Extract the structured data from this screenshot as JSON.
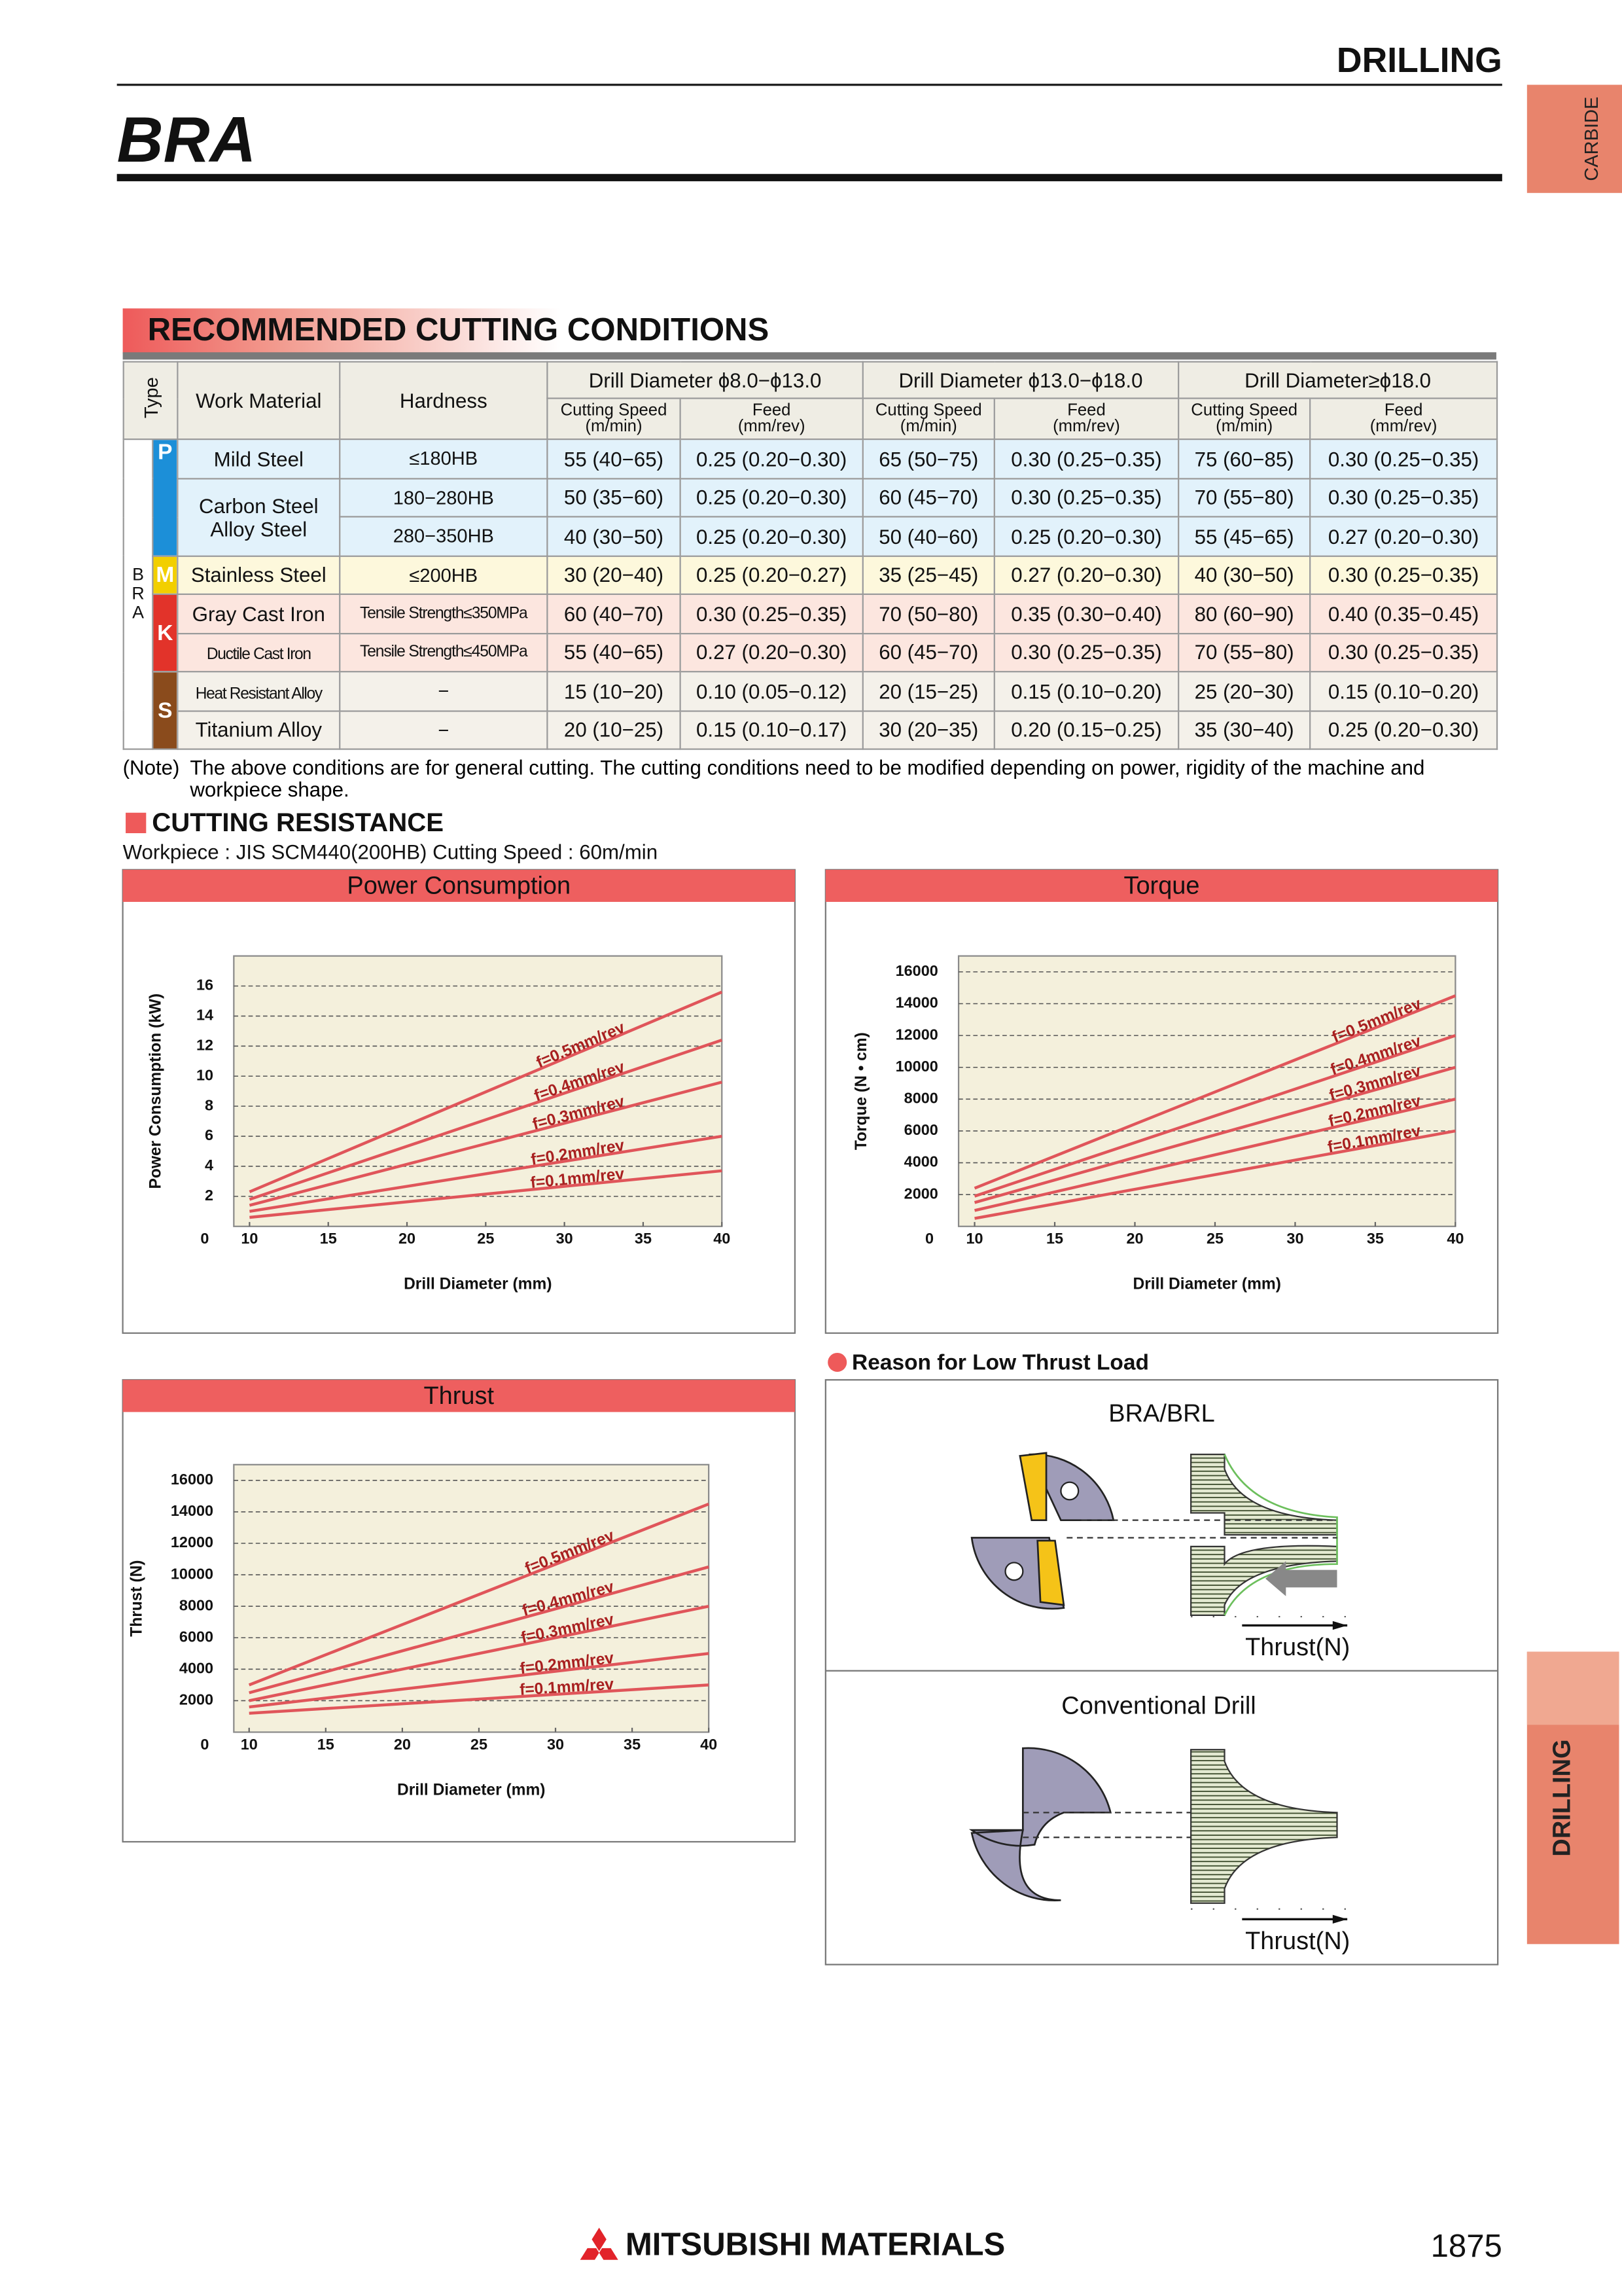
{
  "header": {
    "section": "DRILLING",
    "title": "BRA",
    "tab_top": "CARBIDE",
    "tab_side": "DRILLING"
  },
  "conditions": {
    "title": "RECOMMENDED CUTTING CONDITIONS",
    "headers": {
      "type": "Type",
      "work_material": "Work Material",
      "hardness": "Hardness",
      "diameters": [
        "Drill Diameter ϕ8.0−ϕ13.0",
        "Drill Diameter ϕ13.0−ϕ18.0",
        "Drill Diameter≥ϕ18.0"
      ],
      "speed": [
        "Cutting Speed",
        "(m/min)"
      ],
      "feed": [
        "Feed",
        "(mm/rev)"
      ]
    },
    "side_label": "BRA",
    "groups": [
      {
        "class": "P",
        "color": "#1c8fd8",
        "row_color": "#e2f2fb",
        "materials": [
          {
            "name": [
              "Mild Steel"
            ],
            "rows": [
              {
                "hardness": "≤180HB",
                "values": [
                  "55 (40−65)",
                  "0.25 (0.20−0.30)",
                  "65 (50−75)",
                  "0.30 (0.25−0.35)",
                  "75 (60−85)",
                  "0.30 (0.25−0.35)"
                ]
              }
            ]
          },
          {
            "name": [
              "Carbon Steel",
              "Alloy Steel"
            ],
            "rows": [
              {
                "hardness": "180−280HB",
                "values": [
                  "50 (35−60)",
                  "0.25 (0.20−0.30)",
                  "60 (45−70)",
                  "0.30 (0.25−0.35)",
                  "70 (55−80)",
                  "0.30 (0.25−0.35)"
                ]
              },
              {
                "hardness": "280−350HB",
                "values": [
                  "40 (30−50)",
                  "0.25 (0.20−0.30)",
                  "50 (40−60)",
                  "0.25 (0.20−0.30)",
                  "55 (45−65)",
                  "0.27 (0.20−0.30)"
                ]
              }
            ]
          }
        ]
      },
      {
        "class": "M",
        "color": "#f2cf00",
        "row_color": "#fdf8dc",
        "materials": [
          {
            "name": [
              "Stainless Steel"
            ],
            "rows": [
              {
                "hardness": "≤200HB",
                "values": [
                  "30 (20−40)",
                  "0.25 (0.20−0.27)",
                  "35 (25−45)",
                  "0.27 (0.20−0.30)",
                  "40 (30−50)",
                  "0.30 (0.25−0.35)"
                ]
              }
            ]
          }
        ]
      },
      {
        "class": "K",
        "color": "#e2332a",
        "row_color": "#fce6df",
        "materials": [
          {
            "name": [
              "Gray Cast Iron"
            ],
            "rows": [
              {
                "hardness": "Tensile Strength≤350MPa",
                "values": [
                  "60 (40−70)",
                  "0.30 (0.25−0.35)",
                  "70 (50−80)",
                  "0.35 (0.30−0.40)",
                  "80 (60−90)",
                  "0.40 (0.35−0.45)"
                ]
              }
            ]
          },
          {
            "name": [
              "Ductile Cast Iron"
            ],
            "rows": [
              {
                "hardness": "Tensile Strength≤450MPa",
                "values": [
                  "55 (40−65)",
                  "0.27 (0.20−0.30)",
                  "60 (45−70)",
                  "0.30 (0.25−0.35)",
                  "70 (55−80)",
                  "0.30 (0.25−0.35)"
                ]
              }
            ]
          }
        ]
      },
      {
        "class": "S",
        "color": "#8a4b1c",
        "row_color": "#f4f1ea",
        "materials": [
          {
            "name": [
              "Heat Resistant Alloy"
            ],
            "rows": [
              {
                "hardness": "−",
                "values": [
                  "15 (10−20)",
                  "0.10 (0.05−0.12)",
                  "20 (15−25)",
                  "0.15 (0.10−0.20)",
                  "25 (20−30)",
                  "0.15 (0.10−0.20)"
                ]
              }
            ]
          },
          {
            "name": [
              "Titanium Alloy"
            ],
            "rows": [
              {
                "hardness": "−",
                "values": [
                  "20 (10−25)",
                  "0.15 (0.10−0.17)",
                  "30 (20−35)",
                  "0.20 (0.15−0.25)",
                  "35 (30−40)",
                  "0.25 (0.20−0.30)"
                ]
              }
            ]
          }
        ]
      }
    ],
    "note_label": "(Note)",
    "note": "The above conditions are for general cutting. The cutting conditions need to be modified depending on power, rigidity of the machine and workpiece shape."
  },
  "resistance": {
    "title": "CUTTING RESISTANCE",
    "workpiece": "Workpiece : JIS SCM440(200HB)  Cutting Speed : 60m/min"
  },
  "chart_data": [
    {
      "type": "line",
      "title": "Power Consumption",
      "xlabel": "Drill Diameter (mm)",
      "ylabel": "Power Consumption (kW)",
      "x": [
        10,
        40
      ],
      "xlim": [
        9,
        40
      ],
      "xticks": [
        10,
        15,
        20,
        25,
        30,
        35,
        40
      ],
      "ylim": [
        0,
        18
      ],
      "yticks": [
        0,
        2,
        4,
        6,
        8,
        10,
        12,
        14,
        16
      ],
      "grid": true,
      "series": [
        {
          "name": "f=0.5mm/rev",
          "color": "#e0555a",
          "values": [
            2.3,
            15.6
          ]
        },
        {
          "name": "f=0.4mm/rev",
          "color": "#e0555a",
          "values": [
            1.8,
            12.4
          ]
        },
        {
          "name": "f=0.3mm/rev",
          "color": "#e0555a",
          "values": [
            1.4,
            9.6
          ]
        },
        {
          "name": "f=0.2mm/rev",
          "color": "#e0555a",
          "values": [
            1.0,
            6.0
          ]
        },
        {
          "name": "f=0.1mm/rev",
          "color": "#e0555a",
          "values": [
            0.6,
            3.7
          ]
        }
      ]
    },
    {
      "type": "line",
      "title": "Torque",
      "xlabel": "Drill Diameter (mm)",
      "ylabel": "Torque (N • cm)",
      "x": [
        10,
        40
      ],
      "xlim": [
        9,
        40
      ],
      "xticks": [
        10,
        15,
        20,
        25,
        30,
        35,
        40
      ],
      "ylim": [
        0,
        17000
      ],
      "yticks": [
        0,
        2000,
        4000,
        6000,
        8000,
        10000,
        12000,
        14000,
        16000
      ],
      "grid": true,
      "series": [
        {
          "name": "f=0.5mm/rev",
          "color": "#e0555a",
          "values": [
            2400,
            14500
          ]
        },
        {
          "name": "f=0.4mm/rev",
          "color": "#e0555a",
          "values": [
            1900,
            12000
          ]
        },
        {
          "name": "f=0.3mm/rev",
          "color": "#e0555a",
          "values": [
            1500,
            10000
          ]
        },
        {
          "name": "f=0.2mm/rev",
          "color": "#e0555a",
          "values": [
            1000,
            8000
          ]
        },
        {
          "name": "f=0.1mm/rev",
          "color": "#e0555a",
          "values": [
            500,
            6000
          ]
        }
      ]
    },
    {
      "type": "line",
      "title": "Thrust",
      "xlabel": "Drill Diameter (mm)",
      "ylabel": "Thrust (N)",
      "x": [
        10,
        40
      ],
      "xlim": [
        9,
        40
      ],
      "xticks": [
        10,
        15,
        20,
        25,
        30,
        35,
        40
      ],
      "ylim": [
        0,
        17000
      ],
      "yticks": [
        0,
        2000,
        4000,
        6000,
        8000,
        10000,
        12000,
        14000,
        16000
      ],
      "grid": true,
      "series": [
        {
          "name": "f=0.5mm/rev",
          "color": "#e0555a",
          "values": [
            3000,
            14500
          ]
        },
        {
          "name": "f=0.4mm/rev",
          "color": "#e0555a",
          "values": [
            2500,
            10500
          ]
        },
        {
          "name": "f=0.3mm/rev",
          "color": "#e0555a",
          "values": [
            2000,
            8000
          ]
        },
        {
          "name": "f=0.2mm/rev",
          "color": "#e0555a",
          "values": [
            1600,
            5000
          ]
        },
        {
          "name": "f=0.1mm/rev",
          "color": "#e0555a",
          "values": [
            1200,
            3000
          ]
        }
      ]
    }
  ],
  "thrust_reason": {
    "title": "Reason for Low Thrust Load",
    "panels": [
      {
        "label": "BRA/BRL",
        "axis": "Thrust(N)"
      },
      {
        "label": "Conventional Drill",
        "axis": "Thrust(N)"
      }
    ]
  },
  "footer": {
    "brand": "MITSUBISHI MATERIALS",
    "page": "1875"
  }
}
